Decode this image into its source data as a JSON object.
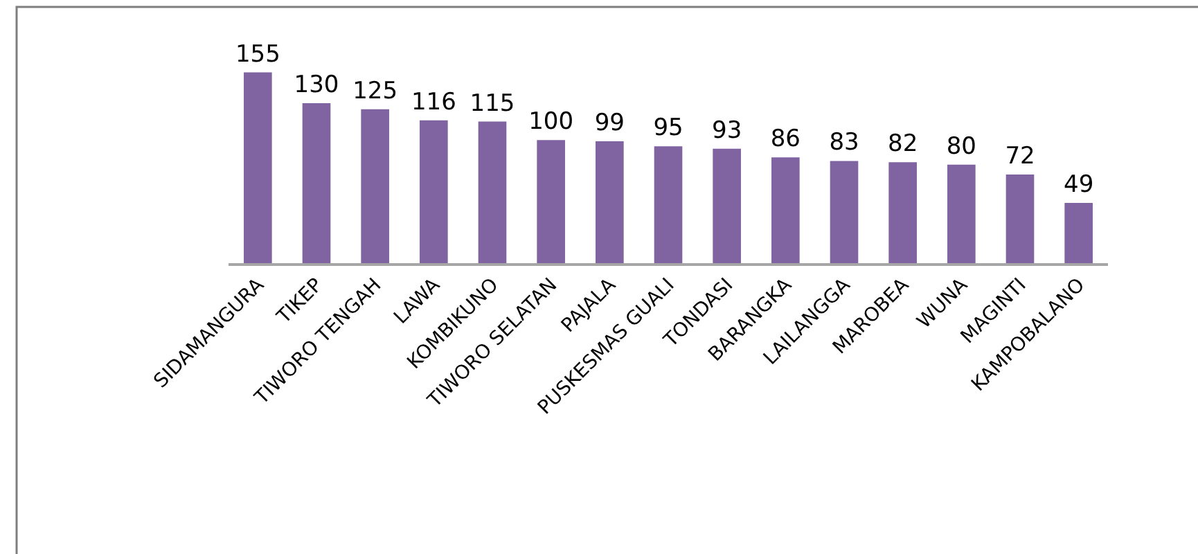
{
  "chart_data": {
    "type": "bar",
    "categories": [
      "SIDAMANGURA",
      "TIKEP",
      "TIWORO TENGAH",
      "LAWA",
      "KOMBIKUNO",
      "TIWORO SELATAN",
      "PAJALA",
      "PUSKESMAS GUALI",
      "TONDASI",
      "BARANGKA",
      "LAILANGGA",
      "MAROBEA",
      "WUNA",
      "MAGINTI",
      "KAMPOBALANO"
    ],
    "values": [
      155,
      130,
      125,
      116,
      115,
      100,
      99,
      95,
      93,
      86,
      83,
      82,
      80,
      72,
      49
    ],
    "color": "#8064a2",
    "data_labels": true
  }
}
